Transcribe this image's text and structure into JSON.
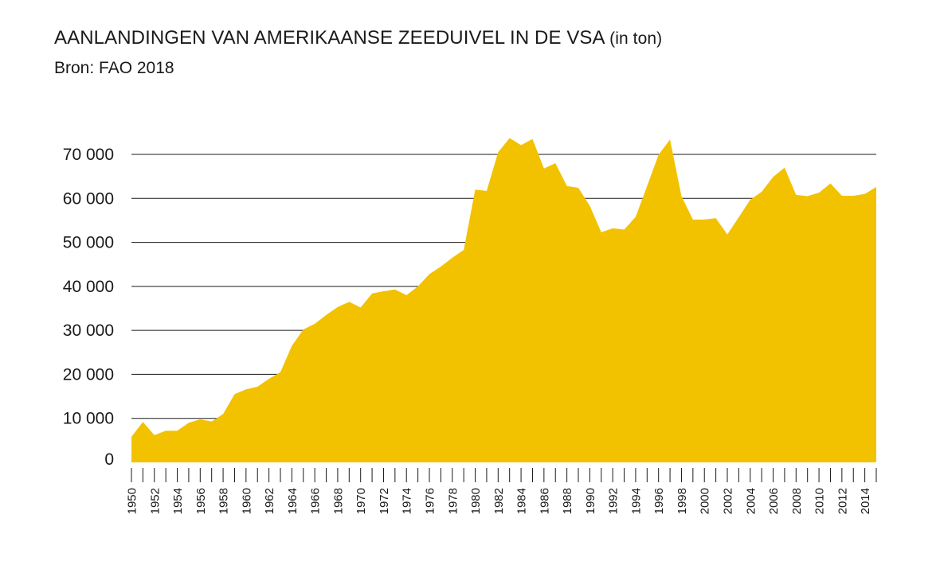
{
  "title": "AANLANDINGEN VAN AMERIKAANSE ZEEDUIVEL IN DE VSA",
  "title_unit": "(in ton)",
  "subtitle": "Bron: FAO 2018",
  "colors": {
    "area": "#F2C200",
    "grid": "#1a1a1a",
    "text": "#1a1a1a"
  },
  "chart_data": {
    "type": "area",
    "title": "AANLANDINGEN VAN AMERIKAANSE ZEEDUIVEL IN DE VSA (in ton)",
    "subtitle": "Bron: FAO 2018",
    "xlabel": "",
    "ylabel": "",
    "x": [
      1950,
      1951,
      1952,
      1953,
      1954,
      1955,
      1956,
      1957,
      1958,
      1959,
      1960,
      1961,
      1962,
      1963,
      1964,
      1965,
      1966,
      1967,
      1968,
      1969,
      1970,
      1971,
      1972,
      1973,
      1974,
      1975,
      1976,
      1977,
      1978,
      1979,
      1980,
      1981,
      1982,
      1983,
      1984,
      1985,
      1986,
      1987,
      1988,
      1989,
      1990,
      1991,
      1992,
      1993,
      1994,
      1995,
      1996,
      1997,
      1998,
      1999,
      2000,
      2001,
      2002,
      2003,
      2004,
      2005,
      2006,
      2007,
      2008,
      2009,
      2010,
      2011,
      2012,
      2013,
      2014,
      2015
    ],
    "values": [
      5800,
      9200,
      6200,
      7200,
      7200,
      9000,
      9800,
      9300,
      11000,
      15500,
      16600,
      17200,
      19000,
      20500,
      26500,
      30200,
      31500,
      33500,
      35300,
      36500,
      35200,
      38400,
      38900,
      39300,
      38000,
      40000,
      42800,
      44500,
      46500,
      48300,
      62000,
      61700,
      70500,
      73700,
      72100,
      73500,
      66800,
      68000,
      62800,
      62400,
      58300,
      52300,
      53200,
      52900,
      55800,
      62800,
      69900,
      73400,
      60500,
      55200,
      55200,
      55500,
      51800,
      55700,
      59700,
      61500,
      64900,
      67000,
      60800,
      60500,
      61300,
      63400,
      60600,
      60600,
      61000,
      62600
    ],
    "ylim": [
      0,
      70000
    ],
    "yticks": [
      0,
      10000,
      20000,
      30000,
      40000,
      50000,
      60000,
      70000
    ],
    "ytick_labels": [
      "0",
      "10 000",
      "20 000",
      "30 000",
      "40 000",
      "50 000",
      "60 000",
      "70 000"
    ],
    "xtick_labels": [
      "1950",
      "1952",
      "1954",
      "1956",
      "1958",
      "1960",
      "1962",
      "1964",
      "1966",
      "1968",
      "1970",
      "1972",
      "1974",
      "1976",
      "1978",
      "1980",
      "1982",
      "1984",
      "1986",
      "1988",
      "1990",
      "1992",
      "1994",
      "1996",
      "1998",
      "2000",
      "2002",
      "2004",
      "2006",
      "2008",
      "2010",
      "2012",
      "2014"
    ],
    "grid": true,
    "legend": "none"
  }
}
